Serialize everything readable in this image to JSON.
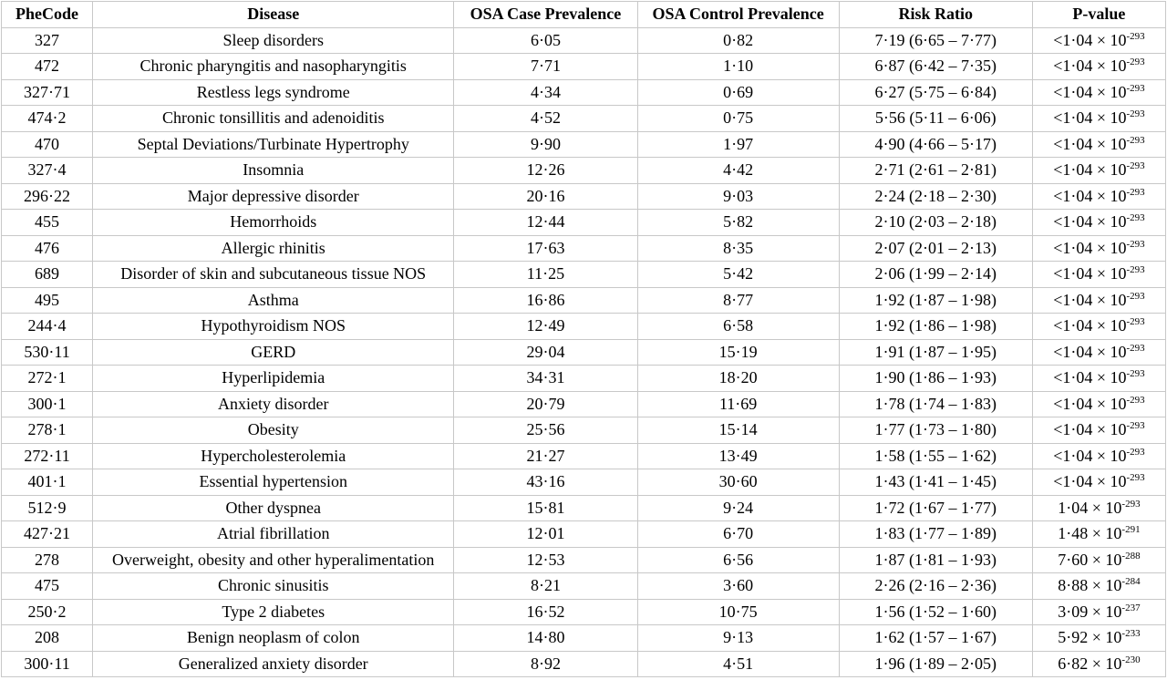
{
  "columns": [
    "PheCode",
    "Disease",
    "OSA Case Prevalence",
    "OSA Control Prevalence",
    "Risk Ratio",
    "P-value"
  ],
  "rows": [
    {
      "phecode": "327",
      "disease": "Sleep disorders",
      "case": "6·05",
      "control": "0·82",
      "rr": "7·19 (6·65 – 7·77)",
      "p_base": "<1·04 × 10",
      "p_exp": "-293"
    },
    {
      "phecode": "472",
      "disease": "Chronic pharyngitis and nasopharyngitis",
      "case": "7·71",
      "control": "1·10",
      "rr": "6·87 (6·42 – 7·35)",
      "p_base": "<1·04 × 10",
      "p_exp": "-293"
    },
    {
      "phecode": "327·71",
      "disease": "Restless legs syndrome",
      "case": "4·34",
      "control": "0·69",
      "rr": "6·27 (5·75 – 6·84)",
      "p_base": "<1·04 × 10",
      "p_exp": "-293"
    },
    {
      "phecode": "474·2",
      "disease": "Chronic tonsillitis and adenoiditis",
      "case": "4·52",
      "control": "0·75",
      "rr": "5·56 (5·11 – 6·06)",
      "p_base": "<1·04 × 10",
      "p_exp": "-293"
    },
    {
      "phecode": "470",
      "disease": "Septal Deviations/Turbinate Hypertrophy",
      "case": "9·90",
      "control": "1·97",
      "rr": "4·90 (4·66 – 5·17)",
      "p_base": "<1·04 × 10",
      "p_exp": "-293"
    },
    {
      "phecode": "327·4",
      "disease": "Insomnia",
      "case": "12·26",
      "control": "4·42",
      "rr": "2·71 (2·61 – 2·81)",
      "p_base": "<1·04 × 10",
      "p_exp": "-293"
    },
    {
      "phecode": "296·22",
      "disease": "Major depressive disorder",
      "case": "20·16",
      "control": "9·03",
      "rr": "2·24 (2·18 – 2·30)",
      "p_base": "<1·04 × 10",
      "p_exp": "-293"
    },
    {
      "phecode": "455",
      "disease": "Hemorrhoids",
      "case": "12·44",
      "control": "5·82",
      "rr": "2·10 (2·03 – 2·18)",
      "p_base": "<1·04 × 10",
      "p_exp": "-293"
    },
    {
      "phecode": "476",
      "disease": "Allergic rhinitis",
      "case": "17·63",
      "control": "8·35",
      "rr": "2·07 (2·01 – 2·13)",
      "p_base": "<1·04 × 10",
      "p_exp": "-293"
    },
    {
      "phecode": "689",
      "disease": "Disorder of skin and subcutaneous tissue NOS",
      "case": "11·25",
      "control": "5·42",
      "rr": "2·06 (1·99 – 2·14)",
      "p_base": "<1·04 × 10",
      "p_exp": "-293"
    },
    {
      "phecode": "495",
      "disease": "Asthma",
      "case": "16·86",
      "control": "8·77",
      "rr": "1·92 (1·87 – 1·98)",
      "p_base": "<1·04 × 10",
      "p_exp": "-293"
    },
    {
      "phecode": "244·4",
      "disease": "Hypothyroidism NOS",
      "case": "12·49",
      "control": "6·58",
      "rr": "1·92 (1·86 – 1·98)",
      "p_base": "<1·04 × 10",
      "p_exp": "-293"
    },
    {
      "phecode": "530·11",
      "disease": "GERD",
      "case": "29·04",
      "control": "15·19",
      "rr": "1·91 (1·87 – 1·95)",
      "p_base": "<1·04 × 10",
      "p_exp": "-293"
    },
    {
      "phecode": "272·1",
      "disease": "Hyperlipidemia",
      "case": "34·31",
      "control": "18·20",
      "rr": "1·90 (1·86 – 1·93)",
      "p_base": "<1·04 × 10",
      "p_exp": "-293"
    },
    {
      "phecode": "300·1",
      "disease": "Anxiety disorder",
      "case": "20·79",
      "control": "11·69",
      "rr": "1·78 (1·74 – 1·83)",
      "p_base": "<1·04 × 10",
      "p_exp": "-293"
    },
    {
      "phecode": "278·1",
      "disease": "Obesity",
      "case": "25·56",
      "control": "15·14",
      "rr": "1·77 (1·73 – 1·80)",
      "p_base": "<1·04 × 10",
      "p_exp": "-293"
    },
    {
      "phecode": "272·11",
      "disease": "Hypercholesterolemia",
      "case": "21·27",
      "control": "13·49",
      "rr": "1·58 (1·55 – 1·62)",
      "p_base": "<1·04 × 10",
      "p_exp": "-293"
    },
    {
      "phecode": "401·1",
      "disease": "Essential hypertension",
      "case": "43·16",
      "control": "30·60",
      "rr": "1·43 (1·41 – 1·45)",
      "p_base": "<1·04 × 10",
      "p_exp": "-293"
    },
    {
      "phecode": "512·9",
      "disease": "Other dyspnea",
      "case": "15·81",
      "control": "9·24",
      "rr": "1·72 (1·67 – 1·77)",
      "p_base": "1·04 × 10",
      "p_exp": "-293"
    },
    {
      "phecode": "427·21",
      "disease": "Atrial fibrillation",
      "case": "12·01",
      "control": "6·70",
      "rr": "1·83 (1·77 – 1·89)",
      "p_base": "1·48 × 10",
      "p_exp": "-291"
    },
    {
      "phecode": "278",
      "disease": "Overweight, obesity and other hyperalimentation",
      "case": "12·53",
      "control": "6·56",
      "rr": "1·87 (1·81 – 1·93)",
      "p_base": "7·60 × 10",
      "p_exp": "-288"
    },
    {
      "phecode": "475",
      "disease": "Chronic sinusitis",
      "case": "8·21",
      "control": "3·60",
      "rr": "2·26 (2·16 – 2·36)",
      "p_base": "8·88 × 10",
      "p_exp": "-284"
    },
    {
      "phecode": "250·2",
      "disease": "Type 2 diabetes",
      "case": "16·52",
      "control": "10·75",
      "rr": "1·56 (1·52 – 1·60)",
      "p_base": "3·09 × 10",
      "p_exp": "-237"
    },
    {
      "phecode": "208",
      "disease": "Benign neoplasm of colon",
      "case": "14·80",
      "control": "9·13",
      "rr": "1·62 (1·57 – 1·67)",
      "p_base": "5·92 × 10",
      "p_exp": "-233"
    },
    {
      "phecode": "300·11",
      "disease": "Generalized anxiety disorder",
      "case": "8·92",
      "control": "4·51",
      "rr": "1·96 (1·89 – 2·05)",
      "p_base": "6·82 × 10",
      "p_exp": "-230"
    }
  ]
}
